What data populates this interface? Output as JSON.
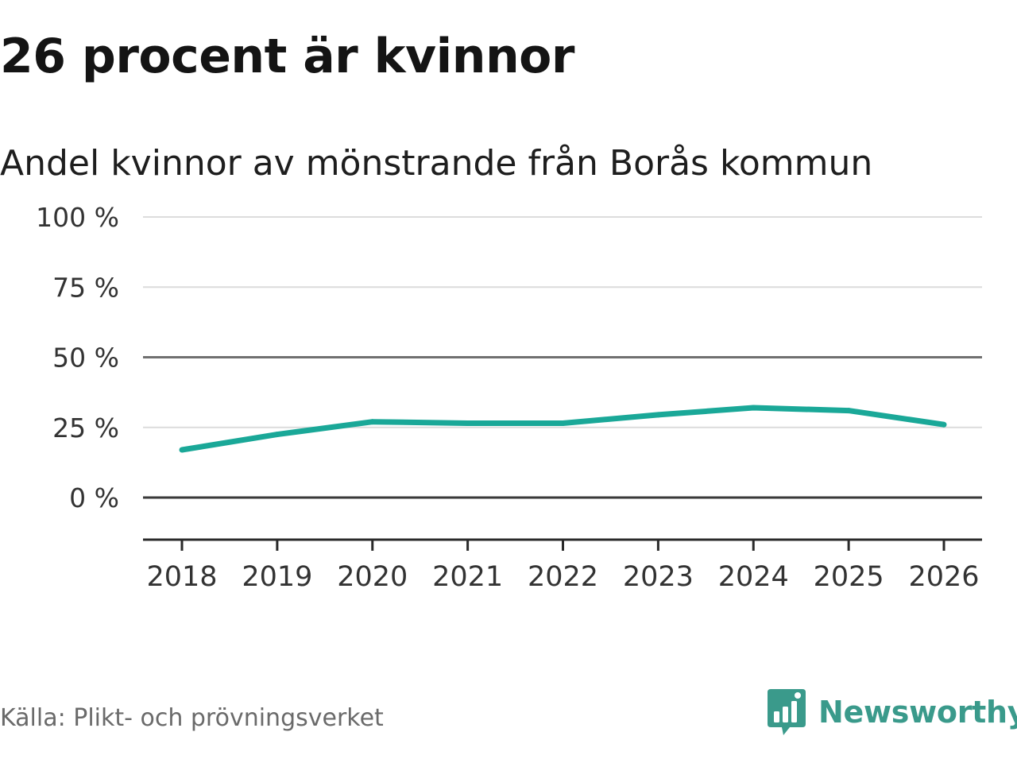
{
  "headline": "26 procent är kvinnor",
  "subtitle": "Andel kvinnor av mönstrande från Borås kommun",
  "source": "Källa: Plikt- och prövningsverket",
  "brand": {
    "name": "Newsworthy",
    "icon": "newsworthy-logo-icon",
    "color": "#3a9a8b"
  },
  "chart_data": {
    "type": "line",
    "title": "26 procent är kvinnor",
    "subtitle": "Andel kvinnor av mönstrande från Borås kommun",
    "xlabel": "",
    "ylabel": "",
    "categories": [
      "2018",
      "2019",
      "2020",
      "2021",
      "2022",
      "2023",
      "2024",
      "2025",
      "2026"
    ],
    "series": [
      {
        "name": "Andel kvinnor",
        "color": "#1aa898",
        "values": [
          17,
          22.5,
          27,
          26.5,
          26.5,
          29.5,
          32,
          31,
          26
        ]
      }
    ],
    "ylim": [
      -15,
      100
    ],
    "yticks": [
      0,
      25,
      50,
      75,
      100
    ],
    "ytick_labels": [
      "0 %",
      "25 %",
      "50 %",
      "75 %",
      "100 %"
    ],
    "grid": true,
    "legend": "none"
  }
}
